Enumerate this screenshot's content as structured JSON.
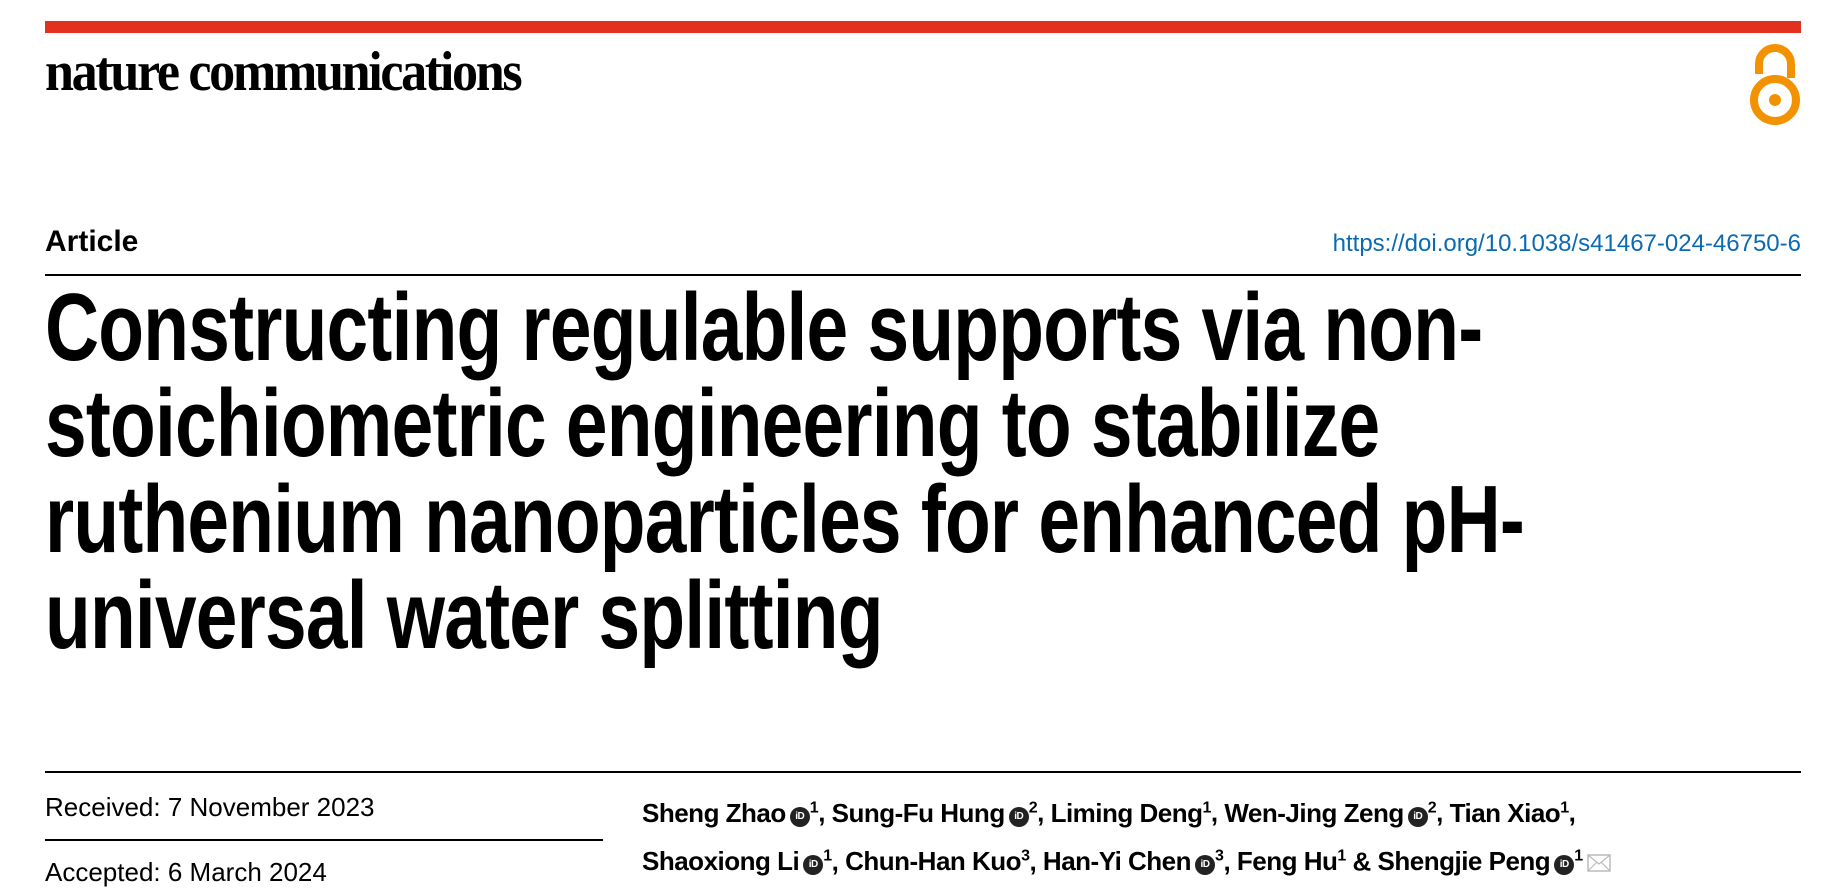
{
  "header": {
    "journal": "nature communications",
    "open_access_icon": "open-access-icon",
    "brand_color": "#e2321f",
    "oa_color": "#f39200"
  },
  "article_type": "Article",
  "doi": "https://doi.org/10.1038/s41467-024-46750-6",
  "title_lines": [
    "Constructing regulable supports via non-",
    "stoichiometric engineering to stabilize",
    "ruthenium nanoparticles for enhanced pH-",
    "universal water splitting"
  ],
  "received": "Received: 7 November 2023",
  "accepted": "Accepted: 6 March 2024",
  "authors": [
    {
      "name": "Sheng Zhao",
      "orcid": true,
      "aff": "1",
      "sep": ", "
    },
    {
      "name": "Sung-Fu Hung",
      "orcid": true,
      "aff": "2",
      "sep": ", "
    },
    {
      "name": "Liming Deng",
      "orcid": false,
      "aff": "1",
      "sep": ", "
    },
    {
      "name": "Wen-Jing Zeng",
      "orcid": true,
      "aff": "2",
      "sep": ", "
    },
    {
      "name": "Tian Xiao",
      "orcid": false,
      "aff": "1",
      "sep": ", "
    },
    {
      "name": "Shaoxiong Li",
      "orcid": true,
      "aff": "1",
      "sep": ", "
    },
    {
      "name": "Chun-Han Kuo",
      "orcid": false,
      "aff": "3",
      "sep": ", "
    },
    {
      "name": "Han-Yi Chen",
      "orcid": true,
      "aff": "3",
      "sep": ", "
    },
    {
      "name": "Feng Hu",
      "orcid": false,
      "aff": "1",
      "sep": " & "
    },
    {
      "name": "Shengjie Peng",
      "orcid": true,
      "aff": "1",
      "sep": "",
      "corresponding": true
    }
  ],
  "orcid_label": "iD"
}
